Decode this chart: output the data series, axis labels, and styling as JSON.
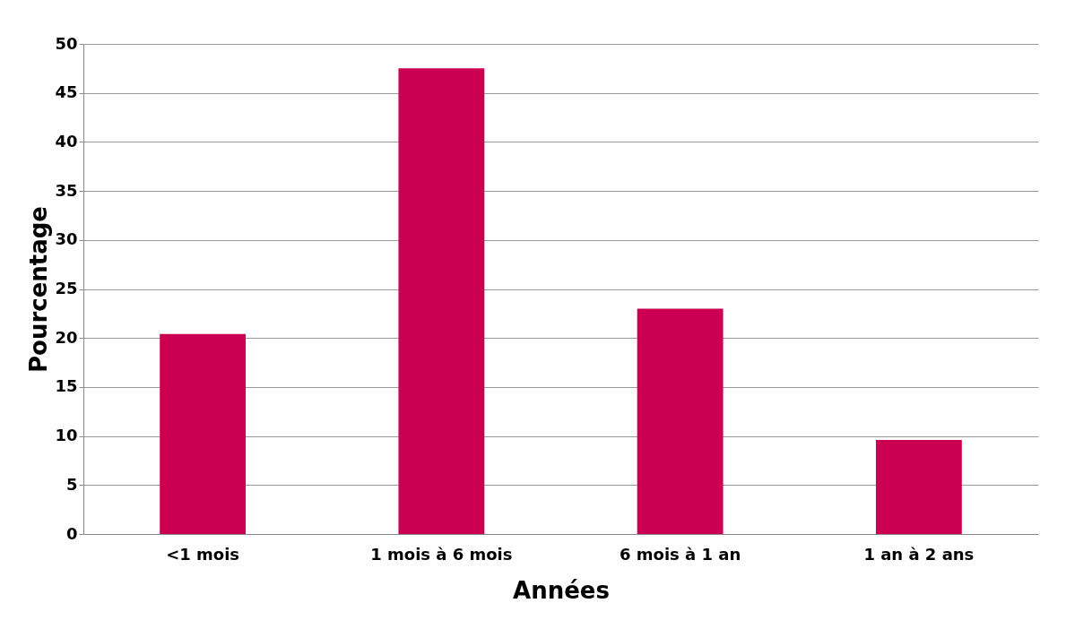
{
  "chart_data": {
    "type": "bar",
    "xlabel": "Années",
    "ylabel": "Pourcentage",
    "categories": [
      "<1 mois",
      "1 mois à 6 mois",
      "6 mois à 1 an",
      "1 an à 2 ans"
    ],
    "values": [
      20.4,
      47.5,
      23,
      9.6
    ],
    "color": "#cc0052",
    "ylim": [
      0,
      50
    ],
    "yticks": [
      0,
      5,
      10,
      15,
      20,
      25,
      30,
      35,
      40,
      45,
      50
    ],
    "grid": "y"
  }
}
